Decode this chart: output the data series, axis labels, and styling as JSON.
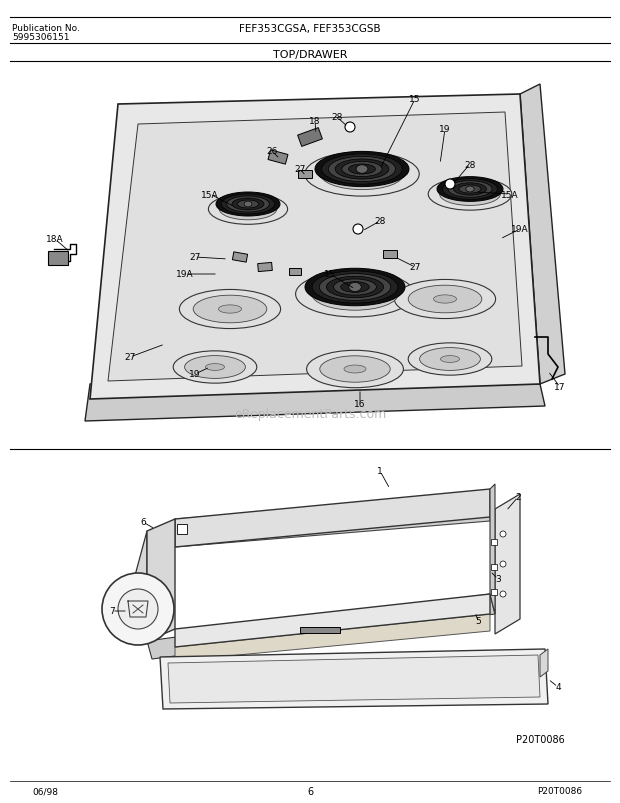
{
  "title_left1": "Publication No.",
  "title_left2": "5995306151",
  "title_center": "FEF353CGSA, FEF353CGSB",
  "section_label": "TOP/DRAWER",
  "watermark": "eReplacementParts.com",
  "footer_left": "06/98",
  "footer_center": "6",
  "footer_right": "P20T0086",
  "bg_color": "#ffffff",
  "fig_width": 6.2,
  "fig_height": 8.04,
  "dpi": 100
}
